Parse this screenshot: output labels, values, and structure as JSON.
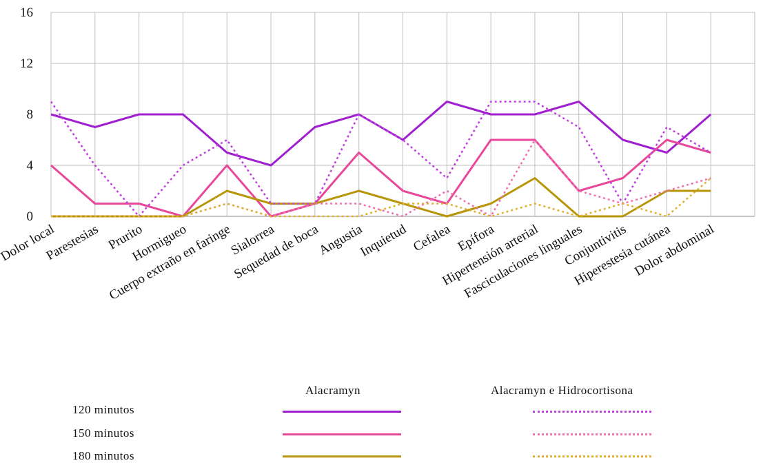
{
  "chart_data": {
    "type": "line",
    "ylim": [
      0,
      16
    ],
    "yticks": [
      0,
      4,
      8,
      12,
      16
    ],
    "grid": true,
    "legend_position": "bottom",
    "categories": [
      "Dolor local",
      "Parestesias",
      "Prurito",
      "Hormigueo",
      "Cuerpo extraño en faringe",
      "Sialorrea",
      "Sequedad de boca",
      "Angustia",
      "Inquietud",
      "Cefalea",
      "Epífora",
      "Hipertensión arterial",
      "Fasciculaciones linguales",
      "Conjuntivitis",
      "Hiperestesia cutánea",
      "Dolor abdominal"
    ],
    "legend_columns": [
      "Alacramyn",
      "Alacramyn e Hidrocortisona"
    ],
    "legend_rows": [
      "120 minutos",
      "150 minutos",
      "180 minutos"
    ],
    "series": [
      {
        "group": "Alacramyn",
        "time": "120 minutos",
        "color": "#a020d0",
        "dashed": false,
        "values": [
          8,
          7,
          8,
          8,
          5,
          4,
          7,
          8,
          6,
          9,
          8,
          8,
          9,
          6,
          5,
          8
        ]
      },
      {
        "group": "Alacramyn",
        "time": "150 minutos",
        "color": "#e8489a",
        "dashed": false,
        "values": [
          4,
          1,
          1,
          0,
          4,
          0,
          1,
          5,
          2,
          1,
          6,
          6,
          2,
          3,
          6,
          5
        ]
      },
      {
        "group": "Alacramyn",
        "time": "180 minutos",
        "color": "#b8960a",
        "dashed": false,
        "values": [
          0,
          0,
          0,
          0,
          2,
          1,
          1,
          2,
          1,
          0,
          1,
          3,
          0,
          0,
          2,
          2
        ]
      },
      {
        "group": "Alacramyn e Hidrocortisona",
        "time": "120 minutos",
        "color": "#c040e0",
        "dashed": true,
        "values": [
          9,
          4,
          0,
          4,
          6,
          1,
          1,
          8,
          6,
          3,
          9,
          9,
          7,
          1,
          7,
          5
        ]
      },
      {
        "group": "Alacramyn e Hidrocortisona",
        "time": "150 minutos",
        "color": "#f070b0",
        "dashed": true,
        "values": [
          0,
          0,
          0,
          0,
          1,
          0,
          1,
          1,
          0,
          2,
          0,
          6,
          2,
          1,
          2,
          3
        ]
      },
      {
        "group": "Alacramyn e Hidrocortisona",
        "time": "180 minutos",
        "color": "#e0b030",
        "dashed": true,
        "values": [
          0,
          0,
          0,
          0,
          1,
          0,
          0,
          0,
          1,
          1,
          0,
          1,
          0,
          1,
          0,
          3
        ]
      }
    ]
  }
}
